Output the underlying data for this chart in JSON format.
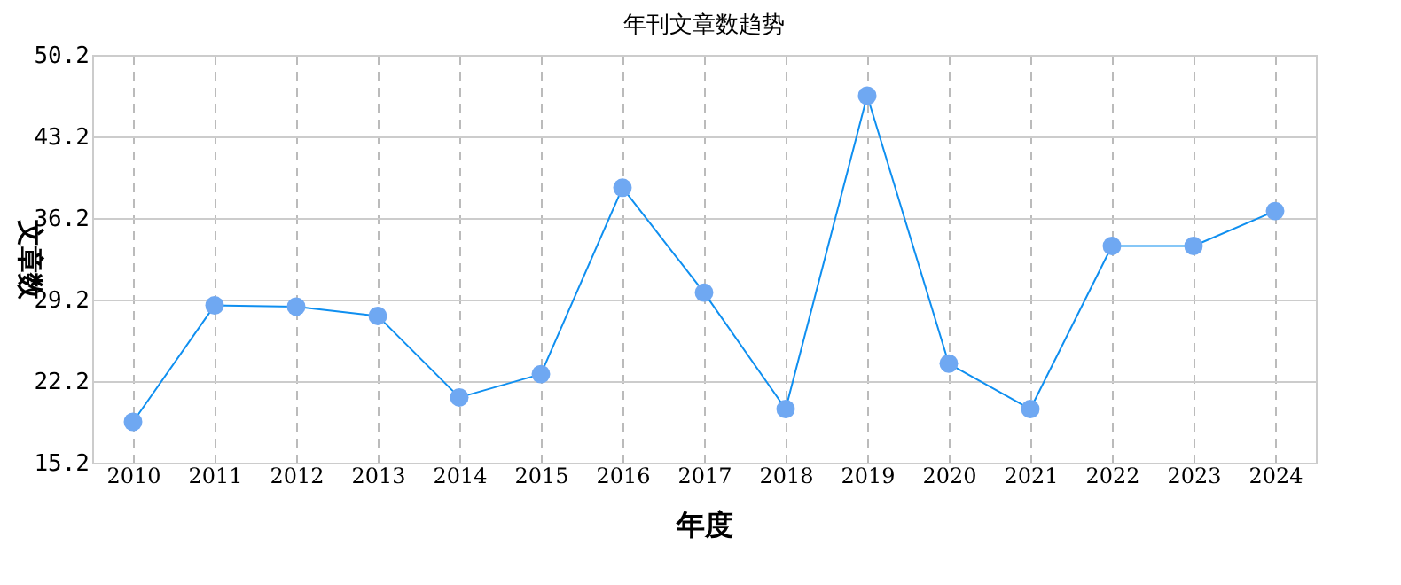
{
  "chart_data": {
    "type": "line",
    "title": "年刊文章数趋势",
    "xlabel": "年度",
    "ylabel": "文章数",
    "categories": [
      "2010",
      "2011",
      "2012",
      "2013",
      "2014",
      "2015",
      "2016",
      "2017",
      "2018",
      "2019",
      "2020",
      "2021",
      "2022",
      "2023",
      "2024"
    ],
    "series": [
      {
        "color": "#0f8ff0",
        "values": [
          18.7,
          28.7,
          28.6,
          27.8,
          20.8,
          22.8,
          38.8,
          29.8,
          19.8,
          46.7,
          23.7,
          19.8,
          33.8,
          33.8,
          36.8
        ]
      }
    ],
    "ylim": [
      15.2,
      50.2
    ],
    "yticks": [
      15.2,
      22.2,
      29.2,
      36.2,
      43.2,
      50.2
    ],
    "grid": true,
    "marker": "circle",
    "line_style": "solid"
  }
}
